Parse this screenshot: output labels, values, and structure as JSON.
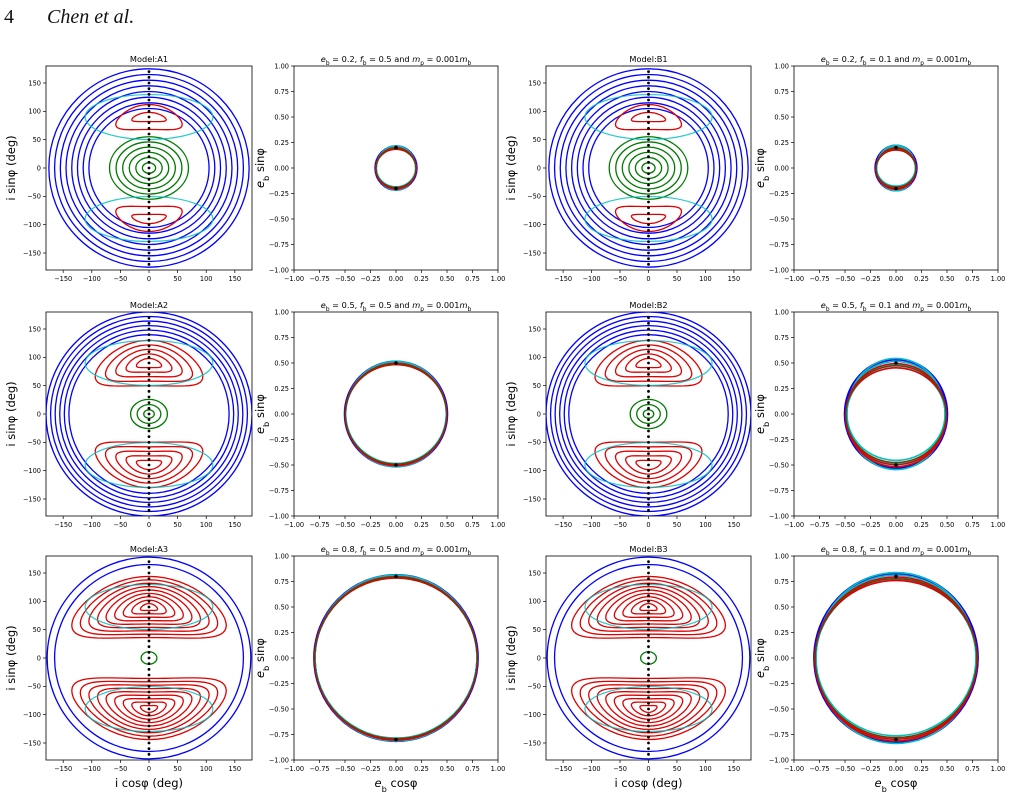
{
  "header": {
    "page_number": "4",
    "authors": "Chen et al."
  },
  "panel_titles": {
    "A1": "Model:A1",
    "A2": "Model:A2",
    "A3": "Model:A3",
    "B1": "Model:B1",
    "B2": "Model:B2",
    "B3": "Model:B3",
    "eA1": "e_b = 0.2, f_b = 0.5 and m_p = 0.001m_b",
    "eA2": "e_b = 0.5, f_b = 0.5 and m_p = 0.001m_b",
    "eA3": "e_b = 0.8, f_b = 0.5 and m_p = 0.001m_b",
    "eB1": "e_b = 0.2, f_b = 0.1 and m_p = 0.001m_b",
    "eB2": "e_b = 0.5, f_b = 0.1 and m_p = 0.001m_b",
    "eB3": "e_b = 0.8, f_b = 0.1 and m_p = 0.001m_b"
  },
  "axis_labels": {
    "inc_x": "i cosφ (deg)",
    "inc_y": "i sinφ (deg)",
    "ecc_x": "e_b cosφ",
    "ecc_y": "e_b sinφ"
  },
  "colors": {
    "blue": "#0000ff",
    "red": "#e00000",
    "green": "#007a00",
    "cyan": "#00c0c0",
    "black": "#000000"
  },
  "chart_data": [
    {
      "id": "A1",
      "type": "line",
      "title": "Model:A1",
      "xlabel": "i cosφ (deg)",
      "ylabel": "i sinφ (deg)",
      "xlim": [
        -180,
        180
      ],
      "ylim": [
        -180,
        180
      ],
      "xticks": [
        -150,
        -100,
        -50,
        0,
        50,
        100,
        150
      ],
      "yticks": [
        -150,
        -100,
        -50,
        0,
        50,
        100,
        150
      ],
      "e_b": 0.2,
      "f_b": 0.5,
      "series": [
        {
          "kind": "circulating",
          "color": "blue",
          "radii": [
            105,
            115,
            125,
            135,
            145,
            155,
            165,
            175
          ]
        },
        {
          "kind": "librating_center",
          "color": "green",
          "radii": [
            10,
            20,
            30,
            40,
            50,
            60
          ]
        },
        {
          "kind": "librating_polar",
          "color": "red",
          "centers": [
            90,
            -90
          ],
          "half_widths": [
            30,
            58
          ],
          "half_heights": [
            8,
            22
          ]
        },
        {
          "kind": "separatrix",
          "color": "cyan"
        }
      ]
    },
    {
      "id": "eA1",
      "type": "line",
      "title": "e_b = 0.2, f_b = 0.5 and m_p = 0.001m_b",
      "xlabel": "",
      "ylabel": "e_b sinφ",
      "xlim": [
        -1,
        1
      ],
      "ylim": [
        -1,
        1
      ],
      "xticks": [
        -1.0,
        -0.75,
        -0.5,
        -0.25,
        0.0,
        0.25,
        0.5,
        0.75,
        1.0
      ],
      "yticks": [
        -1.0,
        -0.75,
        -0.5,
        -0.25,
        0.0,
        0.25,
        0.5,
        0.75,
        1.0
      ],
      "e_b": 0.2,
      "spread": 0.02
    },
    {
      "id": "B1",
      "type": "line",
      "title": "Model:B1",
      "xlabel": "i cosφ (deg)",
      "ylabel": "i sinφ (deg)",
      "xlim": [
        -180,
        180
      ],
      "ylim": [
        -180,
        180
      ],
      "xticks": [
        -150,
        -100,
        -50,
        0,
        50,
        100,
        150
      ],
      "yticks": [
        -150,
        -100,
        -50,
        0,
        50,
        100,
        150
      ],
      "e_b": 0.2,
      "f_b": 0.1,
      "series": [
        {
          "kind": "circulating",
          "color": "blue",
          "radii": [
            105,
            115,
            125,
            135,
            145,
            155,
            165,
            175
          ]
        },
        {
          "kind": "librating_center",
          "color": "green",
          "radii": [
            10,
            20,
            30,
            40,
            50,
            60
          ]
        },
        {
          "kind": "librating_polar",
          "color": "red",
          "centers": [
            90,
            -90
          ],
          "half_widths": [
            30,
            58
          ],
          "half_heights": [
            8,
            22
          ]
        },
        {
          "kind": "separatrix",
          "color": "cyan"
        }
      ]
    },
    {
      "id": "eB1",
      "type": "line",
      "title": "e_b = 0.2, f_b = 0.1 and m_p = 0.001m_b",
      "xlabel": "",
      "ylabel": "e_b sinφ",
      "xlim": [
        -1,
        1
      ],
      "ylim": [
        -1,
        1
      ],
      "xticks": [
        -1.0,
        -0.75,
        -0.5,
        -0.25,
        0.0,
        0.25,
        0.5,
        0.75,
        1.0
      ],
      "yticks": [
        -1.0,
        -0.75,
        -0.5,
        -0.25,
        0.0,
        0.25,
        0.5,
        0.75,
        1.0
      ],
      "e_b": 0.2,
      "spread": 0.03
    },
    {
      "id": "A2",
      "type": "line",
      "title": "Model:A2",
      "xlabel": "i cosφ (deg)",
      "ylabel": "i sinφ (deg)",
      "xlim": [
        -180,
        180
      ],
      "ylim": [
        -180,
        180
      ],
      "xticks": [
        -150,
        -100,
        -50,
        0,
        50,
        100,
        150
      ],
      "yticks": [
        -150,
        -100,
        -50,
        0,
        50,
        100,
        150
      ],
      "e_b": 0.5,
      "f_b": 0.5,
      "series": [
        {
          "kind": "circulating",
          "color": "blue",
          "radii": [
            140,
            148,
            156,
            164,
            172,
            180
          ]
        },
        {
          "kind": "librating_center",
          "color": "green",
          "radii": [
            8,
            18,
            28
          ]
        },
        {
          "kind": "librating_polar",
          "color": "red",
          "centers": [
            90,
            -90
          ],
          "half_widths": [
            22,
            40,
            58,
            76,
            94
          ],
          "half_heights": [
            8,
            16,
            24,
            32,
            40
          ]
        },
        {
          "kind": "separatrix",
          "color": "cyan"
        }
      ]
    },
    {
      "id": "eA2",
      "type": "line",
      "title": "e_b = 0.5, f_b = 0.5 and m_p = 0.001m_b",
      "xlabel": "",
      "ylabel": "e_b sinφ",
      "xlim": [
        -1,
        1
      ],
      "ylim": [
        -1,
        1
      ],
      "xticks": [
        -1.0,
        -0.75,
        -0.5,
        -0.25,
        0.0,
        0.25,
        0.5,
        0.75,
        1.0
      ],
      "yticks": [
        -1.0,
        -0.75,
        -0.5,
        -0.25,
        0.0,
        0.25,
        0.5,
        0.75,
        1.0
      ],
      "e_b": 0.5,
      "spread": 0.02
    },
    {
      "id": "B2",
      "type": "line",
      "title": "Model:B2",
      "xlabel": "i cosφ (deg)",
      "ylabel": "i sinφ (deg)",
      "xlim": [
        -180,
        180
      ],
      "ylim": [
        -180,
        180
      ],
      "xticks": [
        -150,
        -100,
        -50,
        0,
        50,
        100,
        150
      ],
      "yticks": [
        -150,
        -100,
        -50,
        0,
        50,
        100,
        150
      ],
      "e_b": 0.5,
      "f_b": 0.1,
      "series": [
        {
          "kind": "circulating",
          "color": "blue",
          "radii": [
            140,
            148,
            156,
            164,
            172,
            180
          ]
        },
        {
          "kind": "librating_center",
          "color": "green",
          "radii": [
            8,
            18,
            28
          ]
        },
        {
          "kind": "librating_polar",
          "color": "red",
          "centers": [
            90,
            -90
          ],
          "half_widths": [
            22,
            40,
            58,
            76,
            94
          ],
          "half_heights": [
            8,
            16,
            24,
            32,
            40
          ]
        },
        {
          "kind": "separatrix",
          "color": "cyan"
        }
      ]
    },
    {
      "id": "eB2",
      "type": "line",
      "title": "e_b = 0.5, f_b = 0.1 and m_p = 0.001m_b",
      "xlabel": "",
      "ylabel": "e_b sinφ",
      "xlim": [
        -1,
        1
      ],
      "ylim": [
        -1,
        1
      ],
      "xticks": [
        -1.0,
        -0.75,
        -0.5,
        -0.25,
        0.0,
        0.25,
        0.5,
        0.75,
        1.0
      ],
      "yticks": [
        -1.0,
        -0.75,
        -0.5,
        -0.25,
        0.0,
        0.25,
        0.5,
        0.75,
        1.0
      ],
      "e_b": 0.5,
      "spread": 0.06
    },
    {
      "id": "A3",
      "type": "line",
      "title": "Model:A3",
      "xlabel": "i cosφ (deg)",
      "ylabel": "i sinφ (deg)",
      "xlim": [
        -180,
        180
      ],
      "ylim": [
        -180,
        180
      ],
      "xticks": [
        -150,
        -100,
        -50,
        0,
        50,
        100,
        150
      ],
      "yticks": [
        -150,
        -100,
        -50,
        0,
        50,
        100,
        150
      ],
      "e_b": 0.8,
      "f_b": 0.5,
      "series": [
        {
          "kind": "circulating",
          "color": "blue",
          "radii": [
            165,
            178
          ]
        },
        {
          "kind": "librating_center",
          "color": "green",
          "radii": [
            12
          ]
        },
        {
          "kind": "librating_polar",
          "color": "red",
          "centers": [
            90,
            -90
          ],
          "half_widths": [
            15,
            30,
            45,
            60,
            75,
            90,
            105,
            120,
            135
          ],
          "half_heights": [
            6,
            12,
            18,
            24,
            30,
            36,
            42,
            48,
            54
          ]
        },
        {
          "kind": "separatrix",
          "color": "cyan"
        }
      ]
    },
    {
      "id": "eA3",
      "type": "line",
      "title": "e_b = 0.8, f_b = 0.5 and m_p = 0.001m_b",
      "xlabel": "e_b cosφ",
      "ylabel": "e_b sinφ",
      "xlim": [
        -1,
        1
      ],
      "ylim": [
        -1,
        1
      ],
      "xticks": [
        -1.0,
        -0.75,
        -0.5,
        -0.25,
        0.0,
        0.25,
        0.5,
        0.75,
        1.0
      ],
      "yticks": [
        -1.0,
        -0.75,
        -0.5,
        -0.25,
        0.0,
        0.25,
        0.5,
        0.75,
        1.0
      ],
      "e_b": 0.8,
      "spread": 0.02
    },
    {
      "id": "B3",
      "type": "line",
      "title": "Model:B3",
      "xlabel": "i cosφ (deg)",
      "ylabel": "i sinφ (deg)",
      "xlim": [
        -180,
        180
      ],
      "ylim": [
        -180,
        180
      ],
      "xticks": [
        -150,
        -100,
        -50,
        0,
        50,
        100,
        150
      ],
      "yticks": [
        -150,
        -100,
        -50,
        0,
        50,
        100,
        150
      ],
      "e_b": 0.8,
      "f_b": 0.1,
      "series": [
        {
          "kind": "circulating",
          "color": "blue",
          "radii": [
            165,
            178
          ]
        },
        {
          "kind": "librating_center",
          "color": "green",
          "radii": [
            12
          ]
        },
        {
          "kind": "librating_polar",
          "color": "red",
          "centers": [
            90,
            -90
          ],
          "half_widths": [
            15,
            30,
            45,
            60,
            75,
            90,
            105,
            120,
            135
          ],
          "half_heights": [
            6,
            12,
            18,
            24,
            30,
            36,
            42,
            48,
            54
          ]
        },
        {
          "kind": "separatrix",
          "color": "cyan"
        }
      ]
    },
    {
      "id": "eB3",
      "type": "line",
      "title": "e_b = 0.8, f_b = 0.1 and m_p = 0.001m_b",
      "xlabel": "e_b cosφ",
      "ylabel": "e_b sinφ",
      "xlim": [
        -1,
        1
      ],
      "ylim": [
        -1,
        1
      ],
      "xticks": [
        -1.0,
        -0.75,
        -0.5,
        -0.25,
        0.0,
        0.25,
        0.5,
        0.75,
        1.0
      ],
      "yticks": [
        -1.0,
        -0.75,
        -0.5,
        -0.25,
        0.0,
        0.25,
        0.5,
        0.75,
        1.0
      ],
      "e_b": 0.8,
      "spread": 0.05
    }
  ]
}
